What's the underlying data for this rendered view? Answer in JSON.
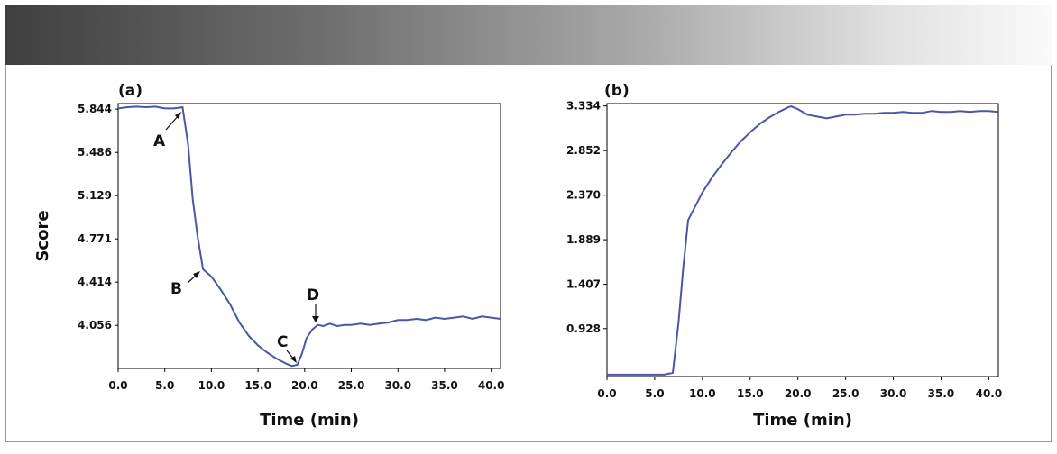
{
  "chart_data": [
    {
      "type": "line",
      "panel_label": "(a)",
      "xlabel": "Time (min)",
      "ylabel": "Score",
      "xlim": [
        0,
        41
      ],
      "ylim": [
        3.7,
        5.89
      ],
      "x_ticks": [
        0,
        5,
        10,
        15,
        20,
        25,
        30,
        35,
        40
      ],
      "x_tick_labels": [
        "0.0",
        "5.0",
        "10.0",
        "15.0",
        "20.0",
        "25.0",
        "30.0",
        "35.0",
        "40.0"
      ],
      "y_ticks": [
        5.844,
        5.486,
        5.129,
        4.771,
        4.414,
        4.056
      ],
      "y_tick_labels": [
        "5.844",
        "5.486",
        "5.129",
        "4.771",
        "4.414",
        "4.056"
      ],
      "color": "#4a56a6",
      "series": [
        {
          "name": "Score",
          "x": [
            0,
            1,
            2,
            3,
            4,
            5,
            6,
            6.9,
            7.5,
            8,
            8.5,
            9.1,
            10,
            11,
            12,
            13,
            14,
            15,
            16,
            17,
            18,
            18.6,
            19.2,
            19.7,
            20.2,
            20.8,
            21.4,
            22,
            22.7,
            23.5,
            24.3,
            25,
            26,
            27,
            28,
            29,
            30,
            31,
            32,
            33,
            34,
            35,
            36,
            37,
            38,
            39,
            40,
            41
          ],
          "values": [
            5.85,
            5.86,
            5.865,
            5.86,
            5.865,
            5.85,
            5.85,
            5.86,
            5.55,
            5.1,
            4.8,
            4.52,
            4.46,
            4.35,
            4.23,
            4.08,
            3.97,
            3.89,
            3.83,
            3.78,
            3.74,
            3.72,
            3.73,
            3.82,
            3.95,
            4.02,
            4.06,
            4.05,
            4.07,
            4.05,
            4.06,
            4.06,
            4.07,
            4.06,
            4.07,
            4.08,
            4.1,
            4.1,
            4.11,
            4.1,
            4.12,
            4.11,
            4.12,
            4.13,
            4.11,
            4.13,
            4.12,
            4.11
          ]
        }
      ],
      "annotations": [
        {
          "label": "A",
          "x": 6.9,
          "y": 5.86
        },
        {
          "label": "B",
          "x": 9.1,
          "y": 4.52
        },
        {
          "label": "C",
          "x": 19.3,
          "y": 3.73
        },
        {
          "label": "D",
          "x": 21.9,
          "y": 4.06
        }
      ]
    },
    {
      "type": "line",
      "panel_label": "(b)",
      "xlabel": "Time (min)",
      "ylabel": "",
      "xlim": [
        0,
        41
      ],
      "ylim": [
        0.41,
        3.36
      ],
      "x_ticks": [
        0,
        5,
        10,
        15,
        20,
        25,
        30,
        35,
        40
      ],
      "x_tick_labels": [
        "0.0",
        "5.0",
        "10.0",
        "15.0",
        "20.0",
        "25.0",
        "30.0",
        "35.0",
        "40.0"
      ],
      "y_ticks": [
        3.334,
        2.852,
        2.37,
        1.889,
        1.407,
        0.928
      ],
      "y_tick_labels": [
        "3.334",
        "2.852",
        "2.370",
        "1.889",
        "1.407",
        "0.928"
      ],
      "color": "#4a56a6",
      "series": [
        {
          "name": "Score",
          "x": [
            0,
            2,
            4,
            5,
            6,
            6.9,
            7.5,
            8,
            8.5,
            9,
            10,
            11,
            12,
            13,
            14,
            15,
            16,
            17,
            18,
            19,
            19.3,
            20,
            21,
            22,
            23,
            24,
            25,
            26,
            27,
            28,
            29,
            30,
            31,
            32,
            33,
            34,
            35,
            36,
            37,
            38,
            39,
            40,
            41
          ],
          "values": [
            0.43,
            0.43,
            0.43,
            0.43,
            0.43,
            0.45,
            1.0,
            1.6,
            2.1,
            2.2,
            2.4,
            2.56,
            2.7,
            2.83,
            2.95,
            3.05,
            3.14,
            3.21,
            3.27,
            3.32,
            3.33,
            3.3,
            3.24,
            3.22,
            3.2,
            3.22,
            3.24,
            3.24,
            3.25,
            3.25,
            3.26,
            3.26,
            3.27,
            3.26,
            3.26,
            3.28,
            3.27,
            3.27,
            3.28,
            3.27,
            3.28,
            3.28,
            3.27
          ]
        }
      ]
    }
  ]
}
